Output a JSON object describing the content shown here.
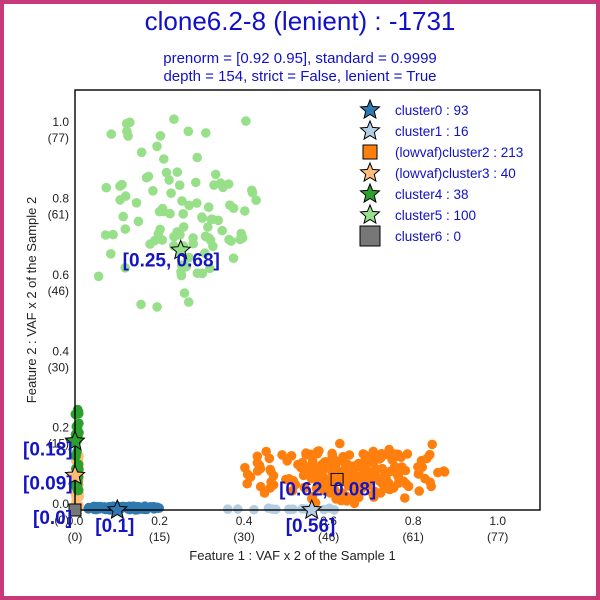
{
  "chart_data": {
    "type": "scatter",
    "title": "clone6.2-8 (lenient) : -1731",
    "subtitle_lines": [
      "prenorm = [0.92 0.95], standard = 0.9999",
      "depth = 154, strict = False, lenient = True"
    ],
    "xlabel": "Feature 1 : VAF x 2 of the Sample 1",
    "ylabel": "Feature 2 : VAF x 2 of the Sample 2",
    "xlim": [
      0,
      1.1
    ],
    "ylim": [
      0,
      1.1
    ],
    "xticks": [
      {
        "value": 0.0,
        "label": "0.0",
        "sub": "(0)"
      },
      {
        "value": 0.2,
        "label": "0.2",
        "sub": "(15)"
      },
      {
        "value": 0.4,
        "label": "0.4",
        "sub": "(30)"
      },
      {
        "value": 0.6,
        "label": "0.6",
        "sub": "(46)"
      },
      {
        "value": 0.8,
        "label": "0.8",
        "sub": "(61)"
      },
      {
        "value": 1.0,
        "label": "1.0",
        "sub": "(77)"
      }
    ],
    "yticks": [
      {
        "value": 0.0,
        "label": "0.0",
        "sub": "(0)"
      },
      {
        "value": 0.2,
        "label": "0.2",
        "sub": "(15)"
      },
      {
        "value": 0.4,
        "label": "0.4",
        "sub": "(30)"
      },
      {
        "value": 0.6,
        "label": "0.6",
        "sub": "(46)"
      },
      {
        "value": 0.8,
        "label": "0.8",
        "sub": "(61)"
      },
      {
        "value": 1.0,
        "label": "1.0",
        "sub": "(77)"
      }
    ],
    "legend_position": "top-right",
    "grid": false,
    "series": [
      {
        "name": "cluster0 : 93",
        "color": "#2e7ab0",
        "marker": "star",
        "count": 93,
        "center": [
          0.1,
          0.0
        ],
        "cloud": {
          "x": [
            0.03,
            0.2
          ],
          "y": [
            0.0,
            0.01
          ]
        }
      },
      {
        "name": "cluster1 : 16",
        "color": "#b3cde3",
        "marker": "star",
        "count": 16,
        "center": [
          0.56,
          0.0
        ],
        "cloud": {
          "x": [
            0.35,
            0.62
          ],
          "y": [
            0.0,
            0.005
          ]
        }
      },
      {
        "name": "(lowvaf)cluster2 : 213",
        "color": "#ff7f0e",
        "marker": "square",
        "count": 213,
        "center": [
          0.62,
          0.08
        ],
        "cloud": {
          "x": [
            0.4,
            0.88
          ],
          "y": [
            0.02,
            0.17
          ]
        }
      },
      {
        "name": "(lowvaf)cluster3 : 40",
        "color": "#ffbb78",
        "marker": "star",
        "count": 40,
        "center": [
          0.0,
          0.09
        ],
        "cloud": {
          "x": [
            0.0,
            0.01
          ],
          "y": [
            0.0,
            0.15
          ]
        }
      },
      {
        "name": "cluster4 : 38",
        "color": "#2ca02c",
        "marker": "star",
        "count": 38,
        "center": [
          0.0,
          0.18
        ],
        "cloud": {
          "x": [
            0.0,
            0.01
          ],
          "y": [
            0.05,
            0.27
          ]
        }
      },
      {
        "name": "cluster5 : 100",
        "color": "#98df8a",
        "marker": "star",
        "count": 100,
        "center": [
          0.25,
          0.68
        ],
        "cloud": {
          "x": [
            0.07,
            0.44
          ],
          "y": [
            0.5,
            1.05
          ]
        }
      },
      {
        "name": "cluster6 : 0",
        "color": "#777777",
        "marker": "square",
        "count": 0,
        "center": [
          0.0,
          0.0
        ],
        "cloud": {
          "x": [
            0.0,
            0.0
          ],
          "y": [
            0.0,
            0.0
          ]
        }
      }
    ],
    "annotations": [
      {
        "text": "[0.25, 0.68]",
        "x": 0.25,
        "y": 0.68
      },
      {
        "text": "[0.62, 0.08]",
        "x": 0.62,
        "y": 0.08
      },
      {
        "text": "[0.18]",
        "x": 0.0,
        "y": 0.18
      },
      {
        "text": "[0.09]",
        "x": 0.0,
        "y": 0.09
      },
      {
        "text": "[0.1]",
        "x": 0.1,
        "y": 0.0
      },
      {
        "text": "[0.56]",
        "x": 0.56,
        "y": 0.0
      },
      {
        "text": "[0.0]",
        "x": 0.0,
        "y": 0.0
      }
    ]
  }
}
